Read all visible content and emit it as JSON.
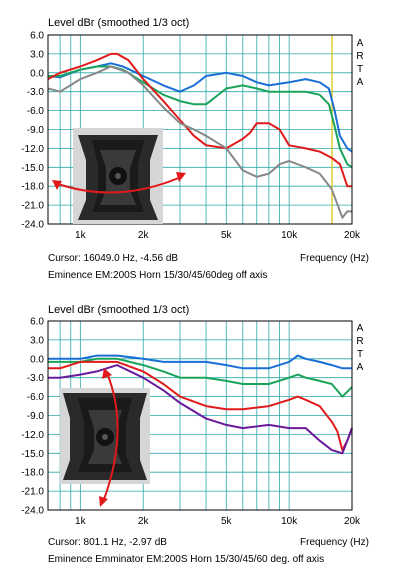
{
  "charts": [
    {
      "title": "Level dBr (smoothed 1/3 oct)",
      "arta_label": "ARTA",
      "xlabel": "Frequency (Hz)",
      "cursor_text": "Cursor: 16049.0 Hz, -4.56 dB",
      "caption": "Eminence EM:200S Horn 15/30/45/60deg off axis"
    },
    {
      "title": "Level dBr (smoothed 1/3 oct)",
      "arta_label": "ARTA",
      "xlabel": "Frequency (Hz)",
      "cursor_text": "Cursor: 801.1 Hz, -2.97 dB",
      "caption": "Eminence Emminator EM:200S Horn 15/30/45/60 deg. off axis"
    }
  ],
  "chart_data": [
    {
      "type": "line",
      "title": "Level dBr (smoothed 1/3 oct)",
      "xlabel": "Frequency (Hz)",
      "ylabel": "",
      "x_scale": "log",
      "xlim": [
        700,
        20000
      ],
      "ylim": [
        -24,
        6
      ],
      "x_ticks": [
        1000,
        2000,
        5000,
        10000,
        20000
      ],
      "x_tick_labels": [
        "1k",
        "2k",
        "5k",
        "10k",
        "20k"
      ],
      "y_ticks": [
        6,
        3,
        0,
        -3,
        -6,
        -9,
        -12,
        -15,
        -18,
        -21,
        -24
      ],
      "y_tick_labels": [
        "6.0",
        "3.0",
        "0.0",
        "-3.0",
        "-6.0",
        "-9.0",
        "-12.0",
        "-15.0",
        "-18.0",
        "-21.0",
        "-24.0"
      ],
      "grid": true,
      "cursor_x": 16049,
      "cursor_color": "#d8c400",
      "series": [
        {
          "color": "#1a6fd6",
          "x": [
            700,
            800,
            1000,
            1200,
            1400,
            1600,
            2000,
            2500,
            3000,
            3500,
            4000,
            5000,
            6000,
            7000,
            8000,
            10000,
            12000,
            14000,
            15500,
            16500,
            17500,
            19000,
            20000
          ],
          "y": [
            -0.5,
            -0.7,
            0.5,
            1.0,
            1.5,
            1.0,
            -0.5,
            -2.0,
            -3.0,
            -2.0,
            -0.5,
            0.0,
            -0.5,
            -1.5,
            -2.0,
            -1.5,
            -1.0,
            -1.5,
            -2.5,
            -6.0,
            -10.0,
            -12.0,
            -12.5
          ]
        },
        {
          "color": "#1aa35a",
          "x": [
            700,
            800,
            1000,
            1200,
            1400,
            1600,
            2000,
            2500,
            3000,
            3500,
            4000,
            5000,
            6000,
            7000,
            8000,
            10000,
            12000,
            14000,
            15500,
            16500,
            17500,
            19000,
            20000
          ],
          "y": [
            -0.5,
            -0.5,
            0.5,
            1.0,
            1.0,
            0.5,
            -1.5,
            -3.5,
            -4.5,
            -5.0,
            -5.0,
            -2.5,
            -2.0,
            -2.5,
            -3.0,
            -3.0,
            -3.0,
            -3.5,
            -5.0,
            -8.5,
            -12.0,
            -14.5,
            -15.0
          ]
        },
        {
          "color": "#e01a1a",
          "x": [
            700,
            800,
            1000,
            1200,
            1400,
            1500,
            1700,
            2000,
            2500,
            3000,
            3500,
            4000,
            5000,
            6000,
            6500,
            7000,
            8000,
            9000,
            10000,
            12000,
            14000,
            16000,
            17500,
            19000,
            20000
          ],
          "y": [
            -1.0,
            0.0,
            1.0,
            2.0,
            3.0,
            3.0,
            2.0,
            -1.0,
            -4.5,
            -7.5,
            -10.0,
            -11.5,
            -12.0,
            -10.5,
            -9.5,
            -8.0,
            -8.0,
            -9.0,
            -11.5,
            -12.0,
            -12.5,
            -13.5,
            -14.5,
            -18.0,
            -18.0
          ]
        },
        {
          "color": "#888888",
          "x": [
            700,
            800,
            1000,
            1200,
            1400,
            1700,
            2000,
            2500,
            3000,
            3500,
            4000,
            5000,
            6000,
            7000,
            8000,
            9000,
            10000,
            12000,
            14000,
            16000,
            18000,
            19000,
            20000
          ],
          "y": [
            -2.5,
            -3.0,
            -1.0,
            0.0,
            1.0,
            0.0,
            -2.0,
            -5.5,
            -8.0,
            -9.0,
            -10.0,
            -12.0,
            -15.5,
            -16.5,
            -16.0,
            -14.5,
            -14.0,
            -15.0,
            -16.0,
            -18.5,
            -23.0,
            -22.0,
            -22.0
          ]
        }
      ]
    },
    {
      "type": "line",
      "title": "Level dBr (smoothed 1/3 oct)",
      "xlabel": "Frequency (Hz)",
      "ylabel": "",
      "x_scale": "log",
      "xlim": [
        700,
        20000
      ],
      "ylim": [
        -24,
        6
      ],
      "x_ticks": [
        1000,
        2000,
        5000,
        10000,
        20000
      ],
      "x_tick_labels": [
        "1k",
        "2k",
        "5k",
        "10k",
        "20k"
      ],
      "y_ticks": [
        6,
        3,
        0,
        -3,
        -6,
        -9,
        -12,
        -15,
        -18,
        -21,
        -24
      ],
      "y_tick_labels": [
        "6.0",
        "3.0",
        "0.0",
        "-3.0",
        "-6.0",
        "-9.0",
        "-12.0",
        "-15.0",
        "-18.0",
        "-21.0",
        "-24.0"
      ],
      "grid": true,
      "series": [
        {
          "color": "#1a6fd6",
          "x": [
            700,
            800,
            1000,
            1200,
            1500,
            2000,
            2500,
            3000,
            4000,
            5000,
            6000,
            8000,
            10000,
            11000,
            12000,
            14000,
            16000,
            18000,
            20000
          ],
          "y": [
            0.0,
            0.0,
            0.0,
            0.5,
            0.5,
            0.0,
            -0.5,
            -0.5,
            -0.5,
            -1.0,
            -1.5,
            -1.5,
            -0.5,
            0.5,
            0.0,
            -0.5,
            -1.0,
            -1.5,
            -1.5
          ]
        },
        {
          "color": "#1aa35a",
          "x": [
            700,
            800,
            1000,
            1200,
            1500,
            2000,
            2500,
            3000,
            4000,
            5000,
            6000,
            8000,
            10000,
            11000,
            12000,
            14000,
            16000,
            18000,
            20000
          ],
          "y": [
            -0.5,
            -0.5,
            -0.5,
            0.0,
            0.0,
            -1.0,
            -2.0,
            -3.0,
            -3.0,
            -3.5,
            -4.0,
            -4.0,
            -3.0,
            -2.5,
            -3.0,
            -3.5,
            -4.0,
            -6.0,
            -4.5
          ]
        },
        {
          "color": "#e01a1a",
          "x": [
            700,
            800,
            1000,
            1200,
            1500,
            2000,
            2500,
            3000,
            4000,
            5000,
            6000,
            8000,
            10000,
            11000,
            12000,
            14000,
            16000,
            17000,
            18000,
            19000,
            20000
          ],
          "y": [
            -1.5,
            -1.5,
            -0.5,
            -0.5,
            -0.5,
            -2.0,
            -4.0,
            -6.0,
            -7.5,
            -8.0,
            -8.0,
            -7.5,
            -6.5,
            -6.0,
            -6.5,
            -7.5,
            -10.0,
            -11.5,
            -14.5,
            -13.0,
            -11.0
          ]
        },
        {
          "color": "#6a1a9a",
          "x": [
            700,
            800,
            1000,
            1200,
            1500,
            2000,
            2500,
            3000,
            4000,
            5000,
            6000,
            8000,
            10000,
            12000,
            14000,
            16000,
            18000,
            19000,
            20000
          ],
          "y": [
            -3.0,
            -3.0,
            -2.5,
            -2.0,
            -1.0,
            -3.0,
            -5.0,
            -7.0,
            -9.5,
            -10.5,
            -11.0,
            -10.5,
            -11.0,
            -11.0,
            -13.0,
            -14.5,
            -15.0,
            -13.0,
            -11.0
          ]
        }
      ]
    }
  ],
  "colors": {
    "grid": "#2ba8a8",
    "frame": "#000000",
    "background": "#ffffff",
    "arrow": "#e01a1a",
    "horn_photo_bg": "#d8d8d8",
    "horn_body": "#2a2a2a"
  }
}
